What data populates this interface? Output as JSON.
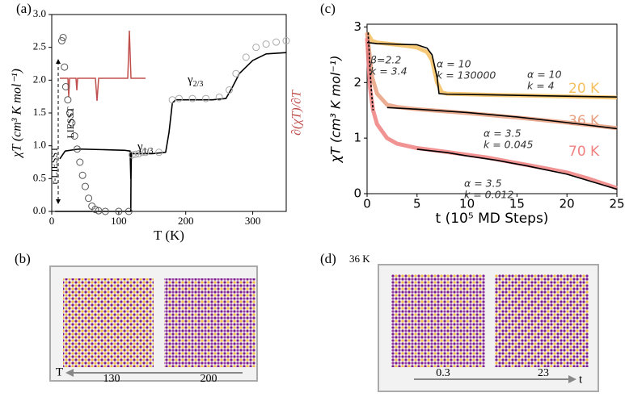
{
  "chart_data": [
    {
      "type": "line",
      "panel_label": "(a)",
      "xlabel": "T (K)",
      "ylabel": "χT (cm³ K mol⁻¹)",
      "y2label": "∂(χT)/∂T",
      "xlim": [
        0,
        350
      ],
      "ylim": [
        0,
        3
      ],
      "xticks": [
        0,
        100,
        200,
        300
      ],
      "yticks": [
        {
          "value": 0,
          "label": "0.0"
        },
        {
          "value": 0.5,
          "label": "0.5"
        },
        {
          "value": 1,
          "label": "1.0"
        },
        {
          "value": 1.5,
          "label": "1.5"
        },
        {
          "value": 2,
          "label": "2.0"
        },
        {
          "value": 2.5,
          "label": "2.5"
        },
        {
          "value": 3,
          "label": "3.0"
        }
      ],
      "series": [
        {
          "color": "#000000",
          "style": "line",
          "x": [
            12,
            20,
            40,
            80,
            110,
            117,
            118,
            119,
            130,
            150,
            170,
            175,
            180,
            185,
            200,
            240,
            260,
            270,
            280,
            300,
            320,
            350
          ],
          "values": [
            0.8,
            0.92,
            0.95,
            0.94,
            0.93,
            0.92,
            0.5,
            0.88,
            0.88,
            0.88,
            0.9,
            1.2,
            1.65,
            1.7,
            1.7,
            1.7,
            1.72,
            1.9,
            2.1,
            2.3,
            2.4,
            2.42
          ]
        },
        {
          "color": "#000000",
          "style": "line",
          "x": [
            5,
            60,
            118,
            118.5
          ],
          "values": [
            0,
            0,
            0,
            0.9
          ]
        },
        {
          "color": "#555555",
          "style": "circles",
          "x": [
            15,
            17,
            19,
            21,
            24,
            27,
            30,
            34,
            38,
            42,
            46,
            50,
            55,
            60,
            65,
            70,
            80,
            100,
            115
          ],
          "values": [
            2.6,
            2.65,
            2.2,
            1.9,
            1.7,
            1.5,
            1.35,
            1.15,
            0.95,
            0.75,
            0.55,
            0.38,
            0.2,
            0.08,
            0.03,
            0.01,
            0,
            0,
            0
          ]
        },
        {
          "color": "#aaaaaa",
          "style": "circles",
          "x": [
            120,
            125,
            130,
            135,
            140,
            160,
            180,
            190,
            210,
            230,
            250,
            265,
            275,
            290,
            305,
            320,
            335,
            350
          ],
          "values": [
            0.86,
            0.87,
            0.88,
            0.9,
            0.9,
            0.9,
            1.7,
            1.72,
            1.72,
            1.72,
            1.74,
            1.85,
            2.1,
            2.35,
            2.5,
            2.55,
            2.58,
            2.6
          ]
        }
      ],
      "annotations": [
        {
          "symbol": "γ",
          "subscript": "1/3"
        },
        {
          "symbol": "γ",
          "subscript": "2/3"
        },
        {
          "text": "LIESST"
        },
        {
          "text": "r-LIESST"
        }
      ]
    },
    {
      "type": "line",
      "panel_label": "(c)",
      "xlabel": "t (10⁵ MD Steps)",
      "ylabel": "χT (cm³ K mol⁻¹)",
      "xlim": [
        0,
        25
      ],
      "ylim": [
        0,
        3.05
      ],
      "xticks": [
        0,
        5,
        10,
        15,
        20,
        25
      ],
      "yticks": [
        0,
        1,
        2,
        3
      ],
      "series": [
        {
          "name": "20 K",
          "color": "#f5c060",
          "style": "noisy",
          "x": [
            0,
            0.5,
            1,
            2,
            3,
            4,
            5,
            6,
            6.5,
            7,
            7.5,
            8,
            10,
            12,
            15,
            20,
            25
          ],
          "values": [
            2.9,
            2.75,
            2.72,
            2.7,
            2.68,
            2.66,
            2.63,
            2.55,
            2.4,
            2.0,
            1.82,
            1.8,
            1.79,
            1.78,
            1.77,
            1.75,
            1.73
          ]
        },
        {
          "name": "36 K",
          "color": "#e8a080",
          "style": "noisy",
          "x": [
            0,
            0.5,
            1,
            2,
            3,
            5,
            8,
            10,
            12,
            15,
            20,
            25
          ],
          "values": [
            2.9,
            2.1,
            1.8,
            1.6,
            1.56,
            1.52,
            1.48,
            1.45,
            1.42,
            1.37,
            1.28,
            1.18
          ]
        },
        {
          "name": "70 K",
          "color": "#f08080",
          "style": "noisy",
          "x": [
            0,
            0.3,
            0.6,
            1,
            2,
            3,
            5,
            8,
            10,
            12,
            15,
            18,
            20,
            22,
            25
          ],
          "values": [
            2.8,
            1.9,
            1.5,
            1.25,
            1.0,
            0.9,
            0.82,
            0.75,
            0.7,
            0.65,
            0.55,
            0.45,
            0.38,
            0.28,
            0.1
          ]
        },
        {
          "color": "#000000",
          "style": "line",
          "x": [
            0,
            1,
            3,
            5,
            6,
            6.5,
            7,
            7.2,
            8,
            12,
            18,
            25
          ],
          "values": [
            2.72,
            2.7,
            2.69,
            2.68,
            2.62,
            2.5,
            2.1,
            1.8,
            1.79,
            1.78,
            1.76,
            1.74
          ]
        },
        {
          "color": "#000000",
          "style": "line",
          "x": [
            2,
            5,
            10,
            15,
            20,
            25
          ],
          "values": [
            1.55,
            1.52,
            1.46,
            1.38,
            1.28,
            1.17
          ]
        },
        {
          "color": "#000000",
          "style": "line",
          "x": [
            5,
            8,
            10,
            13,
            16,
            20,
            25
          ],
          "values": [
            0.8,
            0.74,
            0.68,
            0.6,
            0.5,
            0.35,
            0.08
          ]
        },
        {
          "color": "#000000",
          "style": "dashed",
          "x": [
            0.1,
            0.2,
            0.3,
            0.45,
            0.6
          ],
          "values": [
            2.9,
            2.6,
            2.2,
            1.8,
            1.5
          ]
        }
      ],
      "annotations": [
        {
          "lines": [
            "β=2.2",
            "k = 3.4"
          ]
        },
        {
          "lines": [
            "α = 10",
            "k = 130000"
          ]
        },
        {
          "lines": [
            "α = 10",
            "k = 4"
          ]
        },
        {
          "lines": [
            "α = 3.5",
            "k = 0.045"
          ]
        },
        {
          "lines": [
            "α = 3.5",
            "k = 0.012"
          ]
        }
      ]
    }
  ],
  "panels": [
    {
      "label": "(b)",
      "ticks": [
        "130",
        "200"
      ],
      "axis_label": "T"
    },
    {
      "label": "(d)",
      "title": "36 K",
      "ticks": [
        "0.3",
        "23"
      ],
      "axis_label": "t"
    }
  ]
}
